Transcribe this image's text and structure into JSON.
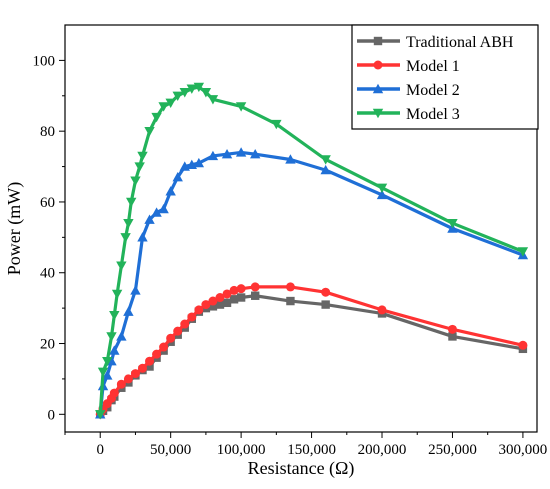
{
  "chart_data": {
    "type": "line",
    "title": "",
    "xlabel": "Resistance (Ω)",
    "ylabel": "Power (mW)",
    "xlim": [
      -25000,
      310000
    ],
    "ylim": [
      -5,
      110
    ],
    "x_ticks": [
      0,
      50000,
      100000,
      150000,
      200000,
      250000,
      300000
    ],
    "x_tick_labels": [
      "0",
      "50,000",
      "100,000",
      "150,000",
      "200,000",
      "250,000",
      "300,000"
    ],
    "y_ticks": [
      0,
      20,
      40,
      60,
      80,
      100
    ],
    "y_tick_labels": [
      "0",
      "20",
      "40",
      "60",
      "80",
      "100"
    ],
    "grid": false,
    "legend_position": "top-right",
    "series": [
      {
        "name": "Traditional ABH",
        "color": "#666666",
        "marker": "square",
        "x": [
          0,
          2000,
          5000,
          8000,
          10000,
          15000,
          20000,
          25000,
          30000,
          35000,
          40000,
          45000,
          50000,
          55000,
          60000,
          65000,
          70000,
          75000,
          80000,
          85000,
          90000,
          95000,
          100000,
          110000,
          135000,
          160000,
          200000,
          250000,
          300000
        ],
        "values": [
          0,
          1,
          2,
          4,
          5,
          7.5,
          9,
          11,
          12.5,
          13.5,
          16,
          18,
          20.5,
          22.5,
          24.5,
          27,
          29,
          30,
          30.5,
          31,
          31.5,
          32.5,
          33,
          33.5,
          32,
          31,
          28.5,
          22,
          18.5
        ]
      },
      {
        "name": "Model 1",
        "color": "#ff3333",
        "marker": "circle",
        "x": [
          0,
          2000,
          5000,
          8000,
          10000,
          15000,
          20000,
          25000,
          30000,
          35000,
          40000,
          45000,
          50000,
          55000,
          60000,
          65000,
          70000,
          75000,
          80000,
          85000,
          90000,
          95000,
          100000,
          110000,
          135000,
          160000,
          200000,
          250000,
          300000
        ],
        "values": [
          0,
          1.5,
          3,
          4.5,
          6,
          8.5,
          10,
          11.5,
          13,
          15,
          17,
          19,
          21.5,
          23.5,
          25.5,
          27.5,
          29.5,
          31,
          32,
          33,
          34,
          35,
          35.5,
          36,
          36,
          34.5,
          29.5,
          24,
          19.5
        ]
      },
      {
        "name": "Model 2",
        "color": "#1f6fd6",
        "marker": "triangle-up",
        "x": [
          0,
          2000,
          5000,
          8000,
          10000,
          15000,
          20000,
          25000,
          30000,
          35000,
          40000,
          45000,
          50000,
          55000,
          60000,
          65000,
          70000,
          80000,
          90000,
          100000,
          110000,
          135000,
          160000,
          200000,
          250000,
          300000
        ],
        "values": [
          0,
          8,
          11,
          15,
          18,
          22,
          29,
          35,
          50,
          55,
          57,
          58,
          63,
          67,
          70,
          70.5,
          71,
          73,
          73.5,
          74,
          73.5,
          72,
          69,
          62,
          52.5,
          45
        ]
      },
      {
        "name": "Model 3",
        "color": "#22b35a",
        "marker": "triangle-down",
        "x": [
          0,
          2000,
          5000,
          8000,
          10000,
          12000,
          15000,
          18000,
          20000,
          22000,
          25000,
          28000,
          30000,
          35000,
          40000,
          45000,
          50000,
          55000,
          60000,
          65000,
          70000,
          75000,
          80000,
          100000,
          125000,
          160000,
          200000,
          250000,
          300000
        ],
        "values": [
          0,
          12,
          15,
          22,
          28,
          34,
          42,
          50,
          54,
          60,
          66,
          70,
          73,
          80,
          84,
          87,
          88,
          90,
          91,
          92,
          92.5,
          91,
          89,
          87,
          82,
          72,
          64,
          54,
          46
        ]
      }
    ]
  }
}
